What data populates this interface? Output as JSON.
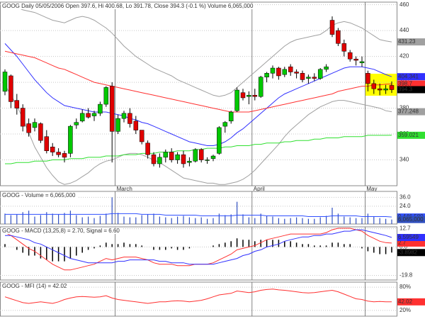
{
  "chart_data": [
    {
      "type": "candlestick",
      "title": "GOOG Daily 05/05/2006 Open 397.6, Hi 400.68, Lo 391.78, Close 394.3 (-0.1 %) Volume 6,065,000",
      "categories": [
        null,
        null,
        null,
        null,
        null,
        null,
        null,
        null,
        null,
        null,
        null,
        null,
        null,
        null,
        null,
        null,
        null,
        null,
        null,
        "March",
        null,
        null,
        null,
        null,
        null,
        null,
        null,
        null,
        null,
        null,
        null,
        null,
        null,
        null,
        null,
        null,
        null,
        null,
        null,
        null,
        null,
        null,
        "April",
        null,
        null,
        null,
        null,
        null,
        null,
        null,
        null,
        null,
        null,
        null,
        null,
        null,
        null,
        null,
        null,
        null,
        null,
        "May",
        null,
        null,
        null,
        null
      ],
      "open": [
        393,
        405,
        386,
        380,
        368,
        365,
        368,
        358,
        350,
        346,
        345,
        345,
        367,
        370,
        376,
        374,
        376,
        383,
        397,
        362,
        372,
        376,
        370,
        363,
        353,
        344,
        337,
        342,
        346,
        340,
        344,
        338,
        339,
        348,
        340,
        341,
        345,
        366,
        370,
        378,
        392,
        389,
        390,
        389,
        404,
        407,
        411,
        406,
        412,
        408,
        407,
        403,
        404,
        403,
        410,
        448,
        440,
        430,
        423,
        418,
        415,
        407,
        399,
        395,
        394,
        397.6
      ],
      "high": [
        410,
        406,
        391,
        383,
        372,
        372,
        369,
        363,
        353,
        349,
        347,
        367,
        372,
        379,
        380,
        378,
        385,
        397,
        400,
        375,
        378,
        380,
        374,
        363,
        355,
        346,
        345,
        348,
        349,
        346,
        347,
        342,
        349,
        349,
        342,
        344,
        366,
        370,
        378,
        396,
        395,
        393,
        395,
        405,
        408,
        413,
        412,
        412,
        414,
        410,
        409,
        406,
        407,
        411,
        414,
        451,
        442,
        433,
        425,
        420,
        420,
        409,
        402,
        399,
        398,
        400.68
      ],
      "low": [
        390,
        380,
        375,
        362,
        358,
        362,
        353,
        345,
        343,
        342,
        338,
        342,
        364,
        369,
        372,
        370,
        374,
        381,
        338,
        360,
        369,
        365,
        360,
        352,
        341,
        335,
        334,
        338,
        338,
        337,
        334,
        335,
        338,
        338,
        337,
        339,
        344,
        361,
        368,
        377,
        386,
        383,
        386,
        388,
        400,
        403,
        402,
        404,
        405,
        403,
        400,
        399,
        401,
        402,
        408,
        435,
        428,
        420,
        416,
        413,
        412,
        393,
        391,
        390,
        391,
        391.78
      ],
      "close": [
        408,
        385,
        380,
        366,
        361,
        369,
        355,
        347,
        346,
        344,
        342,
        366,
        369,
        376,
        373,
        376,
        383,
        396,
        362,
        372,
        376,
        368,
        363,
        354,
        344,
        337,
        342,
        346,
        340,
        344,
        337,
        339,
        348,
        340,
        340,
        343,
        365,
        369,
        377,
        394,
        388,
        390,
        389,
        404,
        407,
        411,
        405,
        410,
        408,
        407,
        402,
        404,
        403,
        410,
        412,
        437,
        430,
        424,
        418,
        417,
        416,
        399,
        395,
        394,
        395,
        394.3
      ],
      "up_color": "#00c800",
      "down_color": "#e00000",
      "close_color": "#000000",
      "series": [
        {
          "color": "#a0a0a0",
          "values": [
            462,
            460,
            458,
            456,
            455,
            454,
            452,
            450,
            448,
            447,
            446,
            448,
            450,
            451,
            450,
            448,
            445,
            442,
            438,
            433,
            428,
            424,
            420,
            417,
            414,
            411,
            409,
            407,
            405,
            402,
            400,
            398,
            396,
            394,
            392,
            390,
            389,
            390,
            392,
            396,
            400,
            404,
            408,
            412,
            416,
            420,
            424,
            428,
            431,
            433,
            434,
            435,
            436,
            437,
            440,
            444,
            446,
            447,
            446,
            444,
            442,
            439,
            436,
            433,
            432,
            431.23
          ]
        },
        {
          "color": "#a0a0a0",
          "values": [
            398,
            390,
            382,
            372,
            361,
            350,
            342,
            334,
            328,
            323,
            321,
            322,
            324,
            327,
            330,
            334,
            337,
            339,
            340,
            342,
            344,
            345,
            345,
            344,
            342,
            340,
            338,
            335,
            332,
            329,
            326,
            325,
            324,
            323,
            322,
            322,
            321,
            321,
            322,
            323,
            325,
            328,
            332,
            337,
            342,
            347,
            352,
            358,
            363,
            367,
            371,
            375,
            378,
            381,
            383,
            385,
            386,
            386,
            385,
            384,
            383,
            382,
            381,
            380,
            378,
            377.248
          ]
        },
        {
          "color": "#3030ff",
          "values": [
            430,
            425,
            420,
            414,
            408,
            402,
            397,
            392,
            388,
            385,
            382,
            381,
            380,
            379,
            378,
            377,
            377,
            377,
            376,
            375,
            374,
            372,
            371,
            369,
            368,
            366,
            364,
            362,
            360,
            358,
            356,
            354,
            353,
            352,
            351,
            351,
            352,
            354,
            357,
            361,
            364,
            368,
            372,
            376,
            380,
            384,
            388,
            391,
            393,
            395,
            397,
            399,
            401,
            403,
            405,
            407,
            409,
            411,
            412,
            412,
            412,
            411,
            410,
            408,
            406,
            404.341
          ]
        },
        {
          "color": "#ff3030",
          "values": [
            424,
            423,
            422,
            421,
            420,
            419,
            417,
            415,
            413,
            411,
            410,
            408,
            406,
            404,
            402,
            400,
            399,
            398,
            397,
            396,
            395,
            394,
            393,
            392,
            391,
            390,
            389,
            388,
            387,
            386,
            385,
            384,
            383,
            382,
            381,
            380,
            379,
            378,
            377,
            377,
            377,
            377,
            378,
            379,
            380,
            381,
            382,
            383,
            384,
            385,
            386,
            387,
            388,
            389,
            390,
            391,
            393,
            394,
            395,
            396,
            397,
            397,
            398,
            398,
            398.5,
            398.7
          ]
        },
        {
          "color": "#30e030",
          "values": [
            337,
            337,
            338,
            338,
            338,
            339,
            339,
            339,
            340,
            340,
            340,
            341,
            341,
            341,
            342,
            342,
            342,
            343,
            343,
            343,
            344,
            344,
            344,
            345,
            345,
            345,
            346,
            346,
            346,
            347,
            347,
            347,
            348,
            348,
            349,
            349,
            349,
            350,
            350,
            351,
            351,
            351,
            352,
            352,
            353,
            353,
            353,
            354,
            354,
            355,
            355,
            355,
            356,
            356,
            357,
            357,
            357,
            358,
            358,
            358,
            358,
            359,
            359,
            359,
            359,
            359.021
          ]
        }
      ],
      "ylim": [
        320,
        462
      ],
      "yticks": [
        340,
        360,
        380,
        400,
        420,
        440,
        460
      ],
      "grid": true
    },
    {
      "type": "bar",
      "title": "GOOG - Volume = 6,065,000",
      "color": "#3050c0",
      "values": [
        14,
        12,
        13,
        16,
        18,
        10,
        12,
        16,
        14,
        13,
        15,
        18,
        12,
        9,
        10,
        8,
        11,
        14,
        36,
        15,
        10,
        9,
        9,
        12,
        13,
        14,
        10,
        9,
        8,
        10,
        11,
        9,
        8,
        9,
        7,
        8,
        14,
        12,
        13,
        30,
        13,
        9,
        8,
        14,
        11,
        10,
        8,
        7,
        8,
        9,
        8,
        7,
        7,
        9,
        11,
        22,
        14,
        10,
        9,
        8,
        8,
        14,
        10,
        8,
        7,
        6.065
      ],
      "last_label": "6,065,000",
      "series": [
        {
          "color": "#3050ff",
          "last_label": "9,446,580",
          "values": [
            13,
            13,
            13,
            13,
            13,
            13,
            13,
            13,
            13,
            13,
            13,
            13,
            13,
            13,
            13,
            13,
            13,
            13,
            14,
            14,
            14,
            14,
            14,
            13,
            13,
            13,
            13,
            12,
            12,
            12,
            12,
            12,
            12,
            11,
            11,
            11,
            11,
            11,
            11,
            12,
            12,
            12,
            12,
            12,
            11,
            11,
            11,
            11,
            11,
            11,
            11,
            10,
            10,
            10,
            10,
            11,
            11,
            11,
            11,
            11,
            10,
            10,
            10,
            10,
            10,
            9.44658
          ]
        }
      ],
      "ylim": [
        0,
        44
      ],
      "yticks": [
        {
          "value": 24,
          "label": "24.0"
        },
        {
          "value": 36,
          "label": "36.0"
        }
      ],
      "grid": true
    },
    {
      "type": "macd",
      "title": "GOOG - MACD (13,25,8) = 2.70, Signal = 6.60",
      "series": [
        {
          "color": "#ff3030",
          "values": [
            10,
            8,
            5,
            2,
            -1,
            -3,
            -6,
            -9,
            -12,
            -14,
            -16,
            -16,
            -15,
            -14,
            -13,
            -12,
            -10,
            -8,
            -9,
            -8,
            -7,
            -7,
            -7,
            -8,
            -9,
            -11,
            -12,
            -12,
            -12,
            -13,
            -13,
            -13,
            -12,
            -12,
            -12,
            -11,
            -9,
            -7,
            -5,
            -2,
            -1,
            0,
            1,
            3,
            5,
            6,
            7,
            8,
            9,
            9,
            9,
            9,
            9,
            9,
            10,
            12,
            13,
            13,
            13,
            12,
            11,
            8,
            6,
            4,
            3,
            2.7
          ]
        },
        {
          "color": "#3030ff",
          "values": [
            8,
            8,
            7,
            6,
            5,
            3,
            2,
            0,
            -2,
            -4,
            -6,
            -8,
            -9,
            -10,
            -11,
            -11,
            -11,
            -11,
            -11,
            -10,
            -10,
            -9,
            -9,
            -9,
            -9,
            -9,
            -10,
            -10,
            -11,
            -11,
            -11,
            -12,
            -12,
            -12,
            -12,
            -12,
            -11,
            -10,
            -9,
            -8,
            -6,
            -5,
            -3,
            -2,
            0,
            1,
            2,
            4,
            5,
            6,
            7,
            7,
            8,
            8,
            9,
            9,
            10,
            11,
            11,
            12,
            12,
            11,
            10,
            9,
            8,
            6.59549
          ]
        }
      ],
      "histogram": {
        "color": "#000000",
        "values": [
          2,
          0,
          -2,
          -4,
          -6,
          -6,
          -8,
          -9,
          -10,
          -10,
          -10,
          -8,
          -6,
          -4,
          -2,
          -1,
          1,
          3,
          2,
          2,
          3,
          2,
          2,
          1,
          0,
          -2,
          -2,
          -2,
          -1,
          -2,
          -2,
          -1,
          0,
          0,
          0,
          1,
          2,
          3,
          4,
          6,
          5,
          5,
          4,
          5,
          5,
          5,
          5,
          4,
          4,
          3,
          2,
          2,
          1,
          1,
          1,
          3,
          3,
          2,
          2,
          0,
          -1,
          -3,
          -4,
          -5,
          -5,
          -3.8982
        ]
      },
      "ylim": [
        -23,
        14
      ],
      "yticks": [
        12.7,
        {
          "value": 0,
          "label": "0.0"
        },
        -19.8
      ],
      "grid": true
    },
    {
      "type": "line",
      "title": "GOOG - MFI (14) = 42.02",
      "series": [
        {
          "color": "#ff3030",
          "values": [
            55,
            50,
            45,
            40,
            38,
            40,
            42,
            40,
            38,
            42,
            48,
            52,
            55,
            56,
            55,
            54,
            55,
            58,
            52,
            48,
            46,
            44,
            42,
            40,
            38,
            40,
            42,
            42,
            44,
            45,
            44,
            42,
            44,
            46,
            50,
            55,
            60,
            62,
            64,
            70,
            68,
            66,
            68,
            72,
            74,
            75,
            73,
            72,
            70,
            68,
            66,
            65,
            66,
            68,
            70,
            72,
            68,
            62,
            56,
            50,
            48,
            44,
            42,
            43,
            42,
            42.02
          ]
        }
      ],
      "ylim": [
        5,
        93
      ],
      "yticks": [
        {
          "value": 80,
          "label": "80%"
        },
        {
          "value": 20,
          "label": "20%"
        }
      ],
      "grid": true
    }
  ]
}
